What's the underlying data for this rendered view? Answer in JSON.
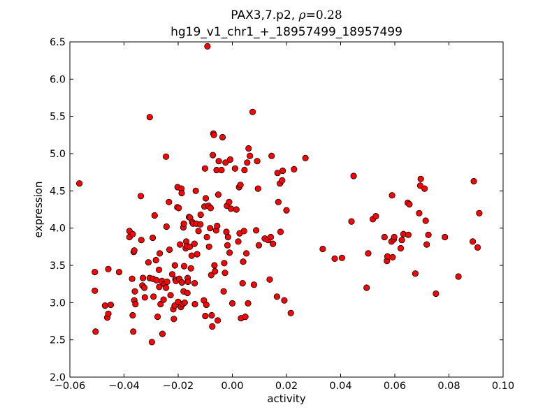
{
  "chart_data": {
    "type": "scatter",
    "title_line1_prefix": "PAX3,7.p2, ",
    "title_rho_symbol": "ρ",
    "title_rho_value": "=0.28",
    "title_line2": "hg19_v1_chr1_+_18957499_18957499",
    "xlabel": "activity",
    "ylabel": "expression",
    "xlim": [
      -0.06,
      0.1
    ],
    "ylim": [
      2.0,
      6.5
    ],
    "xticks": [
      -0.06,
      -0.04,
      -0.02,
      0.0,
      0.02,
      0.04,
      0.06,
      0.08,
      0.1
    ],
    "xtick_labels": [
      "−0.06",
      "−0.04",
      "−0.02",
      "0.00",
      "0.02",
      "0.04",
      "0.06",
      "0.08",
      "0.10"
    ],
    "yticks": [
      2.0,
      2.5,
      3.0,
      3.5,
      4.0,
      4.5,
      5.0,
      5.5,
      6.0,
      6.5
    ],
    "ytick_labels": [
      "2.0",
      "2.5",
      "3.0",
      "3.5",
      "4.0",
      "4.5",
      "5.0",
      "5.5",
      "6.0",
      "6.5"
    ],
    "grid": false,
    "marker_color": "#ff0000",
    "marker_edge": "#000000",
    "points": [
      [
        -0.0565,
        4.6
      ],
      [
        -0.0508,
        3.41
      ],
      [
        -0.0508,
        3.16
      ],
      [
        -0.0505,
        2.61
      ],
      [
        -0.047,
        2.96
      ],
      [
        -0.0462,
        2.8
      ],
      [
        -0.0458,
        2.85
      ],
      [
        -0.0458,
        3.45
      ],
      [
        -0.0449,
        2.97
      ],
      [
        -0.0418,
        3.41
      ],
      [
        -0.038,
        3.96
      ],
      [
        -0.038,
        3.88
      ],
      [
        -0.037,
        3.32
      ],
      [
        -0.0368,
        3.92
      ],
      [
        -0.0368,
        2.83
      ],
      [
        -0.0366,
        2.61
      ],
      [
        -0.0364,
        3.68
      ],
      [
        -0.0362,
        3.7
      ],
      [
        -0.0362,
        3.03
      ],
      [
        -0.036,
        3.15
      ],
      [
        -0.0358,
        2.98
      ],
      [
        -0.0338,
        4.43
      ],
      [
        -0.0336,
        3.84
      ],
      [
        -0.0332,
        3.23
      ],
      [
        -0.033,
        3.33
      ],
      [
        -0.0325,
        3.2
      ],
      [
        -0.0323,
        3.07
      ],
      [
        -0.031,
        3.54
      ],
      [
        -0.0305,
        5.49
      ],
      [
        -0.0305,
        3.33
      ],
      [
        -0.0297,
        2.47
      ],
      [
        -0.0294,
        3.87
      ],
      [
        -0.0293,
        3.32
      ],
      [
        -0.0291,
        3.08
      ],
      [
        -0.0287,
        4.17
      ],
      [
        -0.0282,
        3.57
      ],
      [
        -0.028,
        3.3
      ],
      [
        -0.0276,
        2.81
      ],
      [
        -0.0271,
        3.44
      ],
      [
        -0.027,
        3.21
      ],
      [
        -0.0268,
        3.66
      ],
      [
        -0.0265,
        2.98
      ],
      [
        -0.026,
        3.29
      ],
      [
        -0.0258,
        2.58
      ],
      [
        -0.0254,
        3.04
      ],
      [
        -0.025,
        3.25
      ],
      [
        -0.0245,
        4.96
      ],
      [
        -0.0245,
        3.2
      ],
      [
        -0.0243,
        4.02
      ],
      [
        -0.0241,
        3.28
      ],
      [
        -0.0234,
        4.35
      ],
      [
        -0.0232,
        3.71
      ],
      [
        -0.0228,
        3.1
      ],
      [
        -0.0222,
        3.38
      ],
      [
        -0.0218,
        2.91
      ],
      [
        -0.0216,
        2.78
      ],
      [
        -0.0213,
        2.96
      ],
      [
        -0.0212,
        3.5
      ],
      [
        -0.021,
        3.31
      ],
      [
        -0.0208,
        3.29
      ],
      [
        -0.0203,
        4.28
      ],
      [
        -0.0202,
        4.55
      ],
      [
        -0.02,
        3.01
      ],
      [
        -0.0198,
        4.27
      ],
      [
        -0.0196,
        3.32
      ],
      [
        -0.0193,
        3.78
      ],
      [
        -0.019,
        2.94
      ],
      [
        -0.0188,
        4.53
      ],
      [
        -0.0187,
        4.47
      ],
      [
        -0.0186,
        3.27
      ],
      [
        -0.0183,
        2.98
      ],
      [
        -0.0181,
        4.01
      ],
      [
        -0.018,
        3.15
      ],
      [
        -0.0179,
        4.06
      ],
      [
        -0.0178,
        3.49
      ],
      [
        -0.0176,
        3.0
      ],
      [
        -0.0172,
        3.73
      ],
      [
        -0.017,
        3.82
      ],
      [
        -0.0168,
        3.76
      ],
      [
        -0.0166,
        3.13
      ],
      [
        -0.0165,
        3.33
      ],
      [
        -0.0164,
        3.28
      ],
      [
        -0.016,
        4.15
      ],
      [
        -0.0157,
        3.75
      ],
      [
        -0.0156,
        4.14
      ],
      [
        -0.0153,
        3.46
      ],
      [
        -0.015,
        3.63
      ],
      [
        -0.0148,
        4.08
      ],
      [
        -0.0145,
        4.06
      ],
      [
        -0.014,
        3.79
      ],
      [
        -0.0139,
        3.26
      ],
      [
        -0.0138,
        2.98
      ],
      [
        -0.0135,
        4.5
      ],
      [
        -0.0133,
        4.06
      ],
      [
        -0.013,
        3.65
      ],
      [
        -0.0125,
        3.96
      ],
      [
        -0.0118,
        4.05
      ],
      [
        -0.0117,
        4.18
      ],
      [
        -0.0105,
        3.03
      ],
      [
        -0.0103,
        4.29
      ],
      [
        -0.0101,
        4.8
      ],
      [
        -0.01,
        2.82
      ],
      [
        -0.0098,
        4.4
      ],
      [
        -0.0096,
        2.97
      ],
      [
        -0.0094,
        3.88
      ],
      [
        -0.0092,
        6.44
      ],
      [
        -0.0088,
        4.3
      ],
      [
        -0.0086,
        3.75
      ],
      [
        -0.0082,
        4.0
      ],
      [
        -0.008,
        4.27
      ],
      [
        -0.0078,
        3.37
      ],
      [
        -0.0076,
        2.83
      ],
      [
        -0.0074,
        2.68
      ],
      [
        -0.0072,
        4.98
      ],
      [
        -0.007,
        5.27
      ],
      [
        -0.0068,
        5.25
      ],
      [
        -0.0066,
        3.5
      ],
      [
        -0.0064,
        3.42
      ],
      [
        -0.006,
        3.97
      ],
      [
        -0.0058,
        4.78
      ],
      [
        -0.0056,
        4.03
      ],
      [
        -0.0054,
        2.76
      ],
      [
        -0.0052,
        4.45
      ],
      [
        -0.005,
        4.9
      ],
      [
        -0.004,
        4.78
      ],
      [
        -0.0036,
        5.22
      ],
      [
        -0.0032,
        3.15
      ],
      [
        -0.003,
        3.53
      ],
      [
        -0.0027,
        3.4
      ],
      [
        -0.0025,
        4.88
      ],
      [
        -0.0022,
        3.95
      ],
      [
        -0.002,
        4.3
      ],
      [
        -0.0018,
        3.77
      ],
      [
        -0.0016,
        3.88
      ],
      [
        -0.0012,
        4.35
      ],
      [
        -0.001,
        3.67
      ],
      [
        -0.0008,
        4.92
      ],
      [
        -0.0005,
        4.26
      ],
      [
        0.0,
        2.99
      ],
      [
        0.001,
        4.8
      ],
      [
        0.0015,
        4.25
      ],
      [
        0.0022,
        3.82
      ],
      [
        0.0025,
        4.55
      ],
      [
        0.0027,
        3.93
      ],
      [
        0.003,
        4.58
      ],
      [
        0.0032,
        2.79
      ],
      [
        0.0038,
        3.26
      ],
      [
        0.004,
        3.55
      ],
      [
        0.0043,
        3.96
      ],
      [
        0.0045,
        4.78
      ],
      [
        0.0048,
        2.81
      ],
      [
        0.0052,
        3.66
      ],
      [
        0.0055,
        4.88
      ],
      [
        0.0058,
        2.99
      ],
      [
        0.006,
        5.07
      ],
      [
        0.0065,
        4.97
      ],
      [
        0.0075,
        5.56
      ],
      [
        0.008,
        3.24
      ],
      [
        0.0088,
        3.97
      ],
      [
        0.0092,
        4.9
      ],
      [
        0.0095,
        4.53
      ],
      [
        0.0098,
        3.77
      ],
      [
        0.012,
        3.86
      ],
      [
        0.0132,
        3.84
      ],
      [
        0.0138,
        3.31
      ],
      [
        0.0142,
        3.88
      ],
      [
        0.0145,
        4.97
      ],
      [
        0.015,
        3.79
      ],
      [
        0.0165,
        3.08
      ],
      [
        0.0167,
        4.74
      ],
      [
        0.017,
        4.35
      ],
      [
        0.0176,
        4.6
      ],
      [
        0.0178,
        3.95
      ],
      [
        0.0184,
        4.64
      ],
      [
        0.0186,
        4.77
      ],
      [
        0.0192,
        3.03
      ],
      [
        0.02,
        4.24
      ],
      [
        0.0216,
        2.86
      ],
      [
        0.0228,
        4.79
      ],
      [
        0.027,
        4.94
      ],
      [
        0.0334,
        3.72
      ],
      [
        0.0378,
        3.59
      ],
      [
        0.0405,
        3.6
      ],
      [
        0.044,
        4.09
      ],
      [
        0.0448,
        4.7
      ],
      [
        0.0496,
        3.2
      ],
      [
        0.0502,
        3.66
      ],
      [
        0.0519,
        4.12
      ],
      [
        0.053,
        4.16
      ],
      [
        0.0562,
        3.88
      ],
      [
        0.0571,
        3.56
      ],
      [
        0.0573,
        3.62
      ],
      [
        0.0588,
        3.82
      ],
      [
        0.059,
        4.44
      ],
      [
        0.0592,
        3.61
      ],
      [
        0.0596,
        3.85
      ],
      [
        0.0598,
        3.88
      ],
      [
        0.0622,
        3.73
      ],
      [
        0.0626,
        3.84
      ],
      [
        0.0632,
        3.92
      ],
      [
        0.0648,
        4.34
      ],
      [
        0.065,
        3.91
      ],
      [
        0.0654,
        4.32
      ],
      [
        0.0676,
        3.39
      ],
      [
        0.069,
        4.2
      ],
      [
        0.0694,
        4.57
      ],
      [
        0.0696,
        4.66
      ],
      [
        0.071,
        4.53
      ],
      [
        0.0714,
        4.1
      ],
      [
        0.0718,
        3.78
      ],
      [
        0.0724,
        3.91
      ],
      [
        0.0752,
        3.12
      ],
      [
        0.0785,
        3.88
      ],
      [
        0.0835,
        3.35
      ],
      [
        0.0888,
        3.82
      ],
      [
        0.0892,
        4.63
      ],
      [
        0.0906,
        3.74
      ],
      [
        0.0912,
        4.2
      ]
    ]
  }
}
